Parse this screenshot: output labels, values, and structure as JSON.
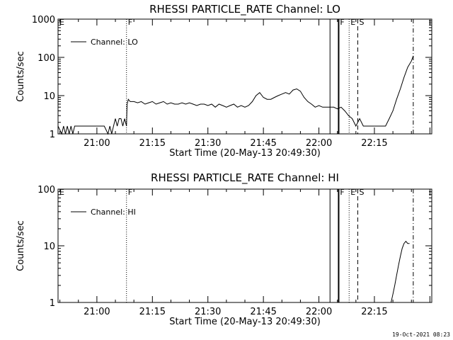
{
  "timestamp": "19-Oct-2021 08:23",
  "chart_data": [
    {
      "type": "line",
      "title": "RHESSI PARTICLE_RATE Channel: LO",
      "xlabel": "Start Time (20-May-13 20:49:30)",
      "ylabel": "Counts/sec",
      "yscale": "log",
      "ylim": [
        1,
        1000
      ],
      "xlim": [
        "20:49:30",
        "22:30:30"
      ],
      "x_ticks": [
        "21:00",
        "21:15",
        "21:30",
        "21:45",
        "22:00",
        "22:15"
      ],
      "y_ticks": [
        "1",
        "10",
        "100",
        "1000"
      ],
      "legend": {
        "label": "Channel: LO",
        "placement": "top-left"
      },
      "markers": [
        {
          "label": "E",
          "time": "20:49:30",
          "style": "none"
        },
        {
          "label": "F",
          "time": "21:08:00",
          "style": "dotted"
        },
        {
          "label": "",
          "time": "22:03:00",
          "style": "solid"
        },
        {
          "label": "F",
          "time": "22:05:20",
          "style": "solid-thick"
        },
        {
          "label": "E",
          "time": "22:08:10",
          "style": "dotted"
        },
        {
          "label": "S",
          "time": "22:10:30",
          "style": "dashed"
        },
        {
          "label": "",
          "time": "22:25:30",
          "style": "dashdot"
        }
      ],
      "series": [
        {
          "x": [
            "20:49:30",
            "20:50:30",
            "20:51:00",
            "20:51:30",
            "20:52:00",
            "20:52:30",
            "20:53:00",
            "20:53:30",
            "20:54:00",
            "20:54:30",
            "20:55:00",
            "20:56:00",
            "20:57:00",
            "20:58:00",
            "20:59:00",
            "21:00:00",
            "21:01:00",
            "21:02:00",
            "21:03:00",
            "21:03:30",
            "21:04:00",
            "21:04:30",
            "21:05:00",
            "21:05:30",
            "21:06:00",
            "21:06:30",
            "21:07:00",
            "21:07:30",
            "21:08:00",
            "21:08:10",
            "21:08:30",
            "21:09:00",
            "21:10:00",
            "21:11:00",
            "21:12:00",
            "21:13:00",
            "21:14:00",
            "21:15:00",
            "21:16:00",
            "21:17:00",
            "21:18:00",
            "21:19:00",
            "21:20:00",
            "21:21:00",
            "21:22:00",
            "21:23:00",
            "21:24:00",
            "21:25:00",
            "21:26:00",
            "21:27:00",
            "21:28:00",
            "21:29:00",
            "21:30:00",
            "21:31:00",
            "21:32:00",
            "21:33:00",
            "21:34:00",
            "21:35:00",
            "21:36:00",
            "21:37:00",
            "21:38:00",
            "21:39:00",
            "21:40:00",
            "21:41:00",
            "21:42:00",
            "21:43:00",
            "21:44:00",
            "21:45:00",
            "21:46:00",
            "21:47:00",
            "21:48:00",
            "21:49:00",
            "21:50:00",
            "21:51:00",
            "21:52:00",
            "21:53:00",
            "21:54:00",
            "21:55:00",
            "21:56:00",
            "21:57:00",
            "21:58:00",
            "21:59:00",
            "22:00:00",
            "22:01:00",
            "22:02:00",
            "22:03:00",
            "22:04:00",
            "22:05:00",
            "22:06:00",
            "22:07:00",
            "22:08:00",
            "22:09:00",
            "22:10:00",
            "22:11:00",
            "22:12:00",
            "22:13:00",
            "22:14:00",
            "22:15:00",
            "22:16:00",
            "22:17:00",
            "22:18:00",
            "22:19:00",
            "22:20:00",
            "22:21:00",
            "22:22:00",
            "22:23:00",
            "22:24:00",
            "22:25:00",
            "22:25:30"
          ],
          "y": [
            1.6,
            1.0,
            1.6,
            1.0,
            1.6,
            1.0,
            1.6,
            1.0,
            1.6,
            1.6,
            1.6,
            1.6,
            1.6,
            1.6,
            1.6,
            1.6,
            1.6,
            1.6,
            1.0,
            1.6,
            1.0,
            1.6,
            2.5,
            1.6,
            2.5,
            2.5,
            1.6,
            2.5,
            1.6,
            6.0,
            8.0,
            7.0,
            7.0,
            6.5,
            7.0,
            6.0,
            6.5,
            7.0,
            6.0,
            6.5,
            7.0,
            6.0,
            6.5,
            6.0,
            6.0,
            6.5,
            6.0,
            6.5,
            6.0,
            5.5,
            6.0,
            6.0,
            5.5,
            6.0,
            5.0,
            6.0,
            5.5,
            5.0,
            5.5,
            6.0,
            5.0,
            5.5,
            5.0,
            5.5,
            7.0,
            10.0,
            12.0,
            9.0,
            8.0,
            8.0,
            9.0,
            10.0,
            11.0,
            12.0,
            11.0,
            14.0,
            15.0,
            13.0,
            9.0,
            7.0,
            6.0,
            5.0,
            5.5,
            5.0,
            5.0,
            5.0,
            5.0,
            4.5,
            5.0,
            4.0,
            3.0,
            2.5,
            1.6,
            2.5,
            1.6,
            1.6,
            1.6,
            1.6,
            1.6,
            1.6,
            1.6,
            2.5,
            4.0,
            8.0,
            15.0,
            30.0,
            55.0,
            80.0,
            110.0
          ]
        }
      ]
    },
    {
      "type": "line",
      "title": "RHESSI PARTICLE_RATE Channel: HI",
      "xlabel": "Start Time (20-May-13 20:49:30)",
      "ylabel": "Counts/sec",
      "yscale": "log",
      "ylim": [
        1,
        100
      ],
      "xlim": [
        "20:49:30",
        "22:30:30"
      ],
      "x_ticks": [
        "21:00",
        "21:15",
        "21:30",
        "21:45",
        "22:00",
        "22:15"
      ],
      "y_ticks": [
        "1",
        "10",
        "100"
      ],
      "legend": {
        "label": "Channel: HI",
        "placement": "top-left"
      },
      "markers": [
        {
          "label": "E",
          "time": "20:49:30",
          "style": "none"
        },
        {
          "label": "F",
          "time": "21:08:00",
          "style": "dotted"
        },
        {
          "label": "",
          "time": "22:03:00",
          "style": "solid"
        },
        {
          "label": "F",
          "time": "22:05:20",
          "style": "solid-thick"
        },
        {
          "label": "E",
          "time": "22:08:10",
          "style": "dotted"
        },
        {
          "label": "S",
          "time": "22:10:30",
          "style": "dashed"
        },
        {
          "label": "",
          "time": "22:25:30",
          "style": "dashdot"
        }
      ],
      "series": [
        {
          "x": [
            "22:19:30",
            "22:20:00",
            "22:20:30",
            "22:21:00",
            "22:21:30",
            "22:22:00",
            "22:22:30",
            "22:23:00",
            "22:23:30",
            "22:24:00",
            "22:24:30"
          ],
          "y": [
            1.0,
            1.4,
            2.0,
            3.0,
            4.5,
            6.5,
            9.0,
            11.0,
            12.0,
            11.0,
            11.0
          ]
        }
      ]
    }
  ]
}
